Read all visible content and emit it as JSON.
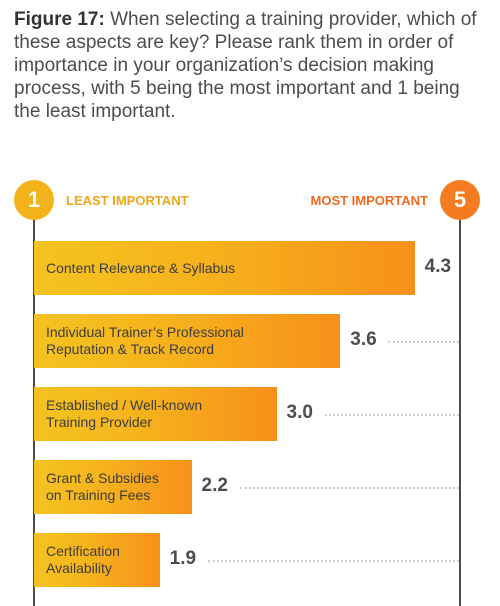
{
  "figure": {
    "label": "Figure 17:",
    "text": "When selecting a training provider, which of these aspects are key? Please rank them in order of importance in your organization’s decision making process, with 5 being the most important and 1 being the least important."
  },
  "scale": {
    "min": "1",
    "max": "5",
    "min_label": "LEAST IMPORTANT",
    "max_label": "MOST IMPORTANT"
  },
  "colors": {
    "min_circle": "#f4b21b",
    "max_circle": "#f47b20",
    "min_label": "#f0a81a",
    "max_label": "#f26a1e"
  },
  "chart_data": {
    "type": "bar",
    "orientation": "horizontal",
    "xlim": [
      1,
      5
    ],
    "categories": [
      "Content Relevance & Syllabus",
      "Individual Trainer’s Professional\nReputation & Track Record",
      "Established / Well-known\nTraining Provider",
      "Grant & Subsidies\non Training Fees",
      "Certification\nAvailability"
    ],
    "values": [
      4.3,
      3.6,
      3.0,
      2.2,
      1.9
    ],
    "value_labels": [
      "4.3",
      "3.6",
      "3.0",
      "2.2",
      "1.9"
    ]
  }
}
